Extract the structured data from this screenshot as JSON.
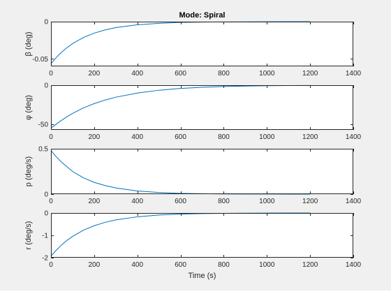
{
  "figure": {
    "title": "Mode: Spiral",
    "xlabel": "Time (s)"
  },
  "colors": {
    "background": "#f0f0f0",
    "axes_background": "#ffffff",
    "line": "#0072bd",
    "axis": "#262626"
  },
  "chart_data": [
    {
      "type": "line",
      "title": "Mode: Spiral",
      "ylabel": "β (deg)",
      "xlim": [
        0,
        1400
      ],
      "ylim": [
        -0.06,
        0
      ],
      "xticks": [
        0,
        200,
        400,
        600,
        800,
        1000,
        1200,
        1400
      ],
      "yticks": [
        -0.05,
        0
      ],
      "ytick_labels": [
        "-0.05",
        "0"
      ],
      "grid": false,
      "series": [
        {
          "x": [
            0,
            25,
            50,
            75,
            100,
            150,
            200,
            250,
            300,
            400,
            500,
            600,
            700,
            800,
            900,
            1000,
            1100,
            1200
          ],
          "y": [
            -0.0565,
            -0.048,
            -0.0408,
            -0.0347,
            -0.0295,
            -0.0213,
            -0.0154,
            -0.0111,
            -0.008,
            -0.0042,
            -0.0022,
            -0.0011,
            -0.0006,
            -0.0003,
            -0.0002,
            -0.0001,
            -0.0,
            -0.0
          ]
        }
      ]
    },
    {
      "type": "line",
      "ylabel": "φ (deg)",
      "xlim": [
        0,
        1400
      ],
      "ylim": [
        -57,
        0
      ],
      "xticks": [
        0,
        200,
        400,
        600,
        800,
        1000,
        1200,
        1400
      ],
      "yticks": [
        -50,
        0
      ],
      "ytick_labels": [
        "-50",
        "0"
      ],
      "grid": false,
      "series": [
        {
          "x": [
            0,
            10,
            25,
            50,
            75,
            100,
            150,
            200,
            250,
            300,
            400,
            500,
            600,
            700,
            800,
            900,
            1000,
            1100,
            1200
          ],
          "y": [
            -54.5,
            -52.7,
            -49.5,
            -44.6,
            -40.0,
            -36.0,
            -29.0,
            -23.5,
            -19.0,
            -15.3,
            -10.0,
            -6.4,
            -4.1,
            -2.7,
            -1.7,
            -1.1,
            -0.7,
            -0.45,
            -0.3
          ]
        }
      ]
    },
    {
      "type": "line",
      "ylabel": "p (deg/s)",
      "xlim": [
        0,
        1400
      ],
      "ylim": [
        0,
        0.5
      ],
      "xticks": [
        0,
        200,
        400,
        600,
        800,
        1000,
        1200,
        1400
      ],
      "yticks": [
        0,
        0.5
      ],
      "ytick_labels": [
        "0",
        "0.5"
      ],
      "grid": false,
      "series": [
        {
          "x": [
            0,
            25,
            50,
            75,
            100,
            150,
            200,
            250,
            300,
            400,
            500,
            600,
            700,
            800,
            900,
            1000,
            1100,
            1200
          ],
          "y": [
            0.48,
            0.41,
            0.35,
            0.3,
            0.25,
            0.18,
            0.13,
            0.095,
            0.068,
            0.035,
            0.018,
            0.009,
            0.005,
            0.0024,
            0.0012,
            0.0006,
            0.0003,
            0.0002
          ]
        }
      ]
    },
    {
      "type": "line",
      "ylabel": "r (deg/s)",
      "xlim": [
        0,
        1400
      ],
      "ylim": [
        -2,
        0
      ],
      "xticks": [
        0,
        200,
        400,
        600,
        800,
        1000,
        1200,
        1400
      ],
      "yticks": [
        -2,
        -1,
        0
      ],
      "ytick_labels": [
        "-2",
        "-1",
        "0"
      ],
      "grid": false,
      "series": [
        {
          "x": [
            0,
            25,
            50,
            75,
            100,
            150,
            200,
            250,
            300,
            400,
            500,
            600,
            700,
            800,
            900,
            1000,
            1100,
            1200
          ],
          "y": [
            -1.93,
            -1.66,
            -1.42,
            -1.22,
            -1.05,
            -0.77,
            -0.57,
            -0.42,
            -0.31,
            -0.17,
            -0.09,
            -0.05,
            -0.026,
            -0.014,
            -0.008,
            -0.004,
            -0.002,
            -0.001
          ]
        }
      ]
    }
  ]
}
